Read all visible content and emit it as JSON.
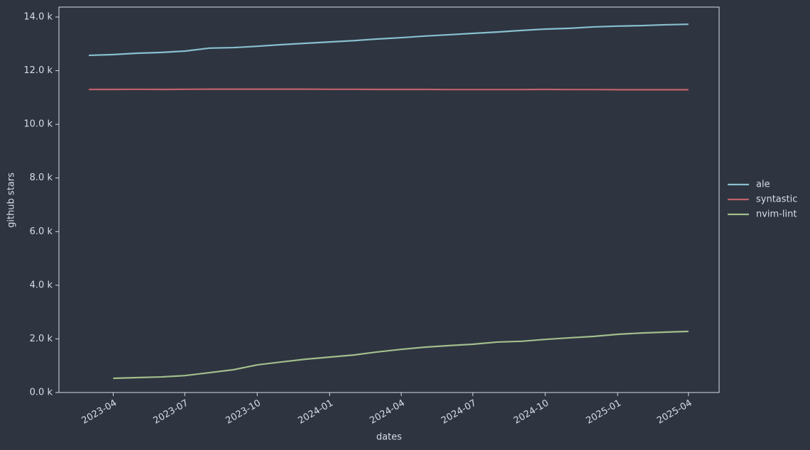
{
  "chart_data": {
    "type": "line",
    "x_label": "dates",
    "y_label": "github stars",
    "x": [
      "2023-03",
      "2023-04",
      "2023-05",
      "2023-06",
      "2023-07",
      "2023-08",
      "2023-09",
      "2023-10",
      "2023-11",
      "2023-12",
      "2024-01",
      "2024-02",
      "2024-03",
      "2024-04",
      "2024-05",
      "2024-06",
      "2024-07",
      "2024-08",
      "2024-09",
      "2024-10",
      "2024-11",
      "2024-12",
      "2025-01",
      "2025-02",
      "2025-03",
      "2025-04"
    ],
    "series": [
      {
        "name": "ale",
        "color": "#88c0d0",
        "values": [
          12570,
          12600,
          12650,
          12680,
          12730,
          12840,
          12860,
          12910,
          12970,
          13020,
          13070,
          13120,
          13180,
          13230,
          13290,
          13340,
          13390,
          13440,
          13500,
          13550,
          13580,
          13630,
          13660,
          13680,
          13710,
          13730
        ]
      },
      {
        "name": "syntastic",
        "color": "#bf616a",
        "values": [
          11300,
          11300,
          11305,
          11300,
          11305,
          11310,
          11310,
          11310,
          11310,
          11310,
          11305,
          11305,
          11300,
          11300,
          11300,
          11295,
          11295,
          11295,
          11295,
          11300,
          11295,
          11295,
          11290,
          11290,
          11290,
          11290
        ]
      },
      {
        "name": "nvim-lint",
        "color": "#a3be8c",
        "values": [
          null,
          530,
          556,
          580,
          630,
          740,
          850,
          1030,
          1140,
          1240,
          1320,
          1400,
          1510,
          1610,
          1690,
          1750,
          1800,
          1880,
          1910,
          1980,
          2040,
          2090,
          2170,
          2220,
          2250,
          2280
        ]
      }
    ],
    "xlim": [
      "2023-01-22",
      "2025-05-10"
    ],
    "xticks": [
      "2023-04",
      "2023-07",
      "2023-10",
      "2024-01",
      "2024-04",
      "2024-07",
      "2024-10",
      "2025-01",
      "2025-04"
    ],
    "ylim": [
      0,
      14370
    ],
    "yticks": [
      {
        "value": 0,
        "label": "0.0 k"
      },
      {
        "value": 2000,
        "label": "2.0 k"
      },
      {
        "value": 4000,
        "label": "4.0 k"
      },
      {
        "value": 6000,
        "label": "6.0 k"
      },
      {
        "value": 8000,
        "label": "8.0 k"
      },
      {
        "value": 10000,
        "label": "10.0 k"
      },
      {
        "value": 12000,
        "label": "12.0 k"
      },
      {
        "value": 14000,
        "label": "14.0 k"
      }
    ],
    "legend": "right"
  }
}
